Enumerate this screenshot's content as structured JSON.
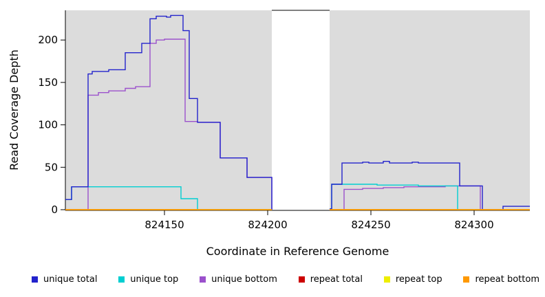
{
  "chart_data": {
    "type": "line",
    "line_style": "step-after",
    "title": "",
    "xlabel": "Coordinate in Reference Genome",
    "ylabel": "Read Coverage Depth",
    "xlim": [
      824102,
      824327
    ],
    "ylim": [
      0,
      235
    ],
    "x_ticks": [
      824150,
      824200,
      824250,
      824300
    ],
    "y_ticks": [
      0,
      50,
      100,
      150,
      200
    ],
    "grid": false,
    "plot_background": "#DCDCDC",
    "gap_region": {
      "start": 824202,
      "end": 824230
    },
    "legend_position": "bottom",
    "draw_order": [
      "unique bottom",
      "unique top",
      "unique total",
      "repeat total",
      "repeat top",
      "repeat bottom"
    ],
    "series": [
      {
        "name": "unique total",
        "color": "#2222CC",
        "segments": [
          [
            [
              824102,
              12
            ],
            [
              824105,
              27
            ],
            [
              824113,
              160
            ],
            [
              824115,
              163
            ],
            [
              824123,
              165
            ],
            [
              824131,
              185
            ],
            [
              824139,
              196
            ],
            [
              824143,
              225
            ],
            [
              824146,
              228
            ],
            [
              824151,
              227
            ],
            [
              824153,
              229
            ],
            [
              824159,
              211
            ],
            [
              824162,
              131
            ],
            [
              824166,
              103
            ],
            [
              824177,
              61
            ],
            [
              824190,
              38
            ],
            [
              824202,
              0
            ]
          ],
          [
            [
              824230,
              1
            ],
            [
              824231,
              30
            ],
            [
              824236,
              55
            ],
            [
              824246,
              56
            ],
            [
              824249,
              55
            ],
            [
              824256,
              57
            ],
            [
              824259,
              55
            ],
            [
              824270,
              56
            ],
            [
              824273,
              55
            ],
            [
              824292,
              55
            ],
            [
              824293,
              28
            ],
            [
              824303,
              28
            ],
            [
              824304,
              0
            ],
            [
              824314,
              4
            ],
            [
              824327,
              4
            ]
          ]
        ]
      },
      {
        "name": "unique top",
        "color": "#00CED1",
        "segments": [
          [
            [
              824102,
              12
            ],
            [
              824105,
              27
            ],
            [
              824157,
              27
            ],
            [
              824158,
              13
            ],
            [
              824165,
              13
            ],
            [
              824166,
              0
            ],
            [
              824202,
              0
            ]
          ],
          [
            [
              824230,
              1
            ],
            [
              824231,
              30
            ],
            [
              824252,
              30
            ],
            [
              824253,
              29
            ],
            [
              824272,
              29
            ],
            [
              824273,
              28
            ],
            [
              824291,
              28
            ],
            [
              824292,
              0
            ],
            [
              824303,
              0
            ]
          ]
        ]
      },
      {
        "name": "unique bottom",
        "color": "#9B51CC",
        "segments": [
          [
            [
              824102,
              0
            ],
            [
              824113,
              135
            ],
            [
              824118,
              138
            ],
            [
              824123,
              140
            ],
            [
              824131,
              143
            ],
            [
              824136,
              145
            ],
            [
              824143,
              196
            ],
            [
              824146,
              200
            ],
            [
              824150,
              201
            ],
            [
              824160,
              104
            ],
            [
              824166,
              103
            ],
            [
              824177,
              61
            ],
            [
              824190,
              38
            ],
            [
              824202,
              0
            ]
          ],
          [
            [
              824236,
              0
            ],
            [
              824237,
              24
            ],
            [
              824246,
              25
            ],
            [
              824256,
              26
            ],
            [
              824266,
              27
            ],
            [
              824286,
              28
            ],
            [
              824302,
              28
            ],
            [
              824303,
              0
            ]
          ]
        ]
      },
      {
        "name": "repeat total",
        "color": "#CC0000",
        "segments": [
          [
            [
              824102,
              0
            ],
            [
              824202,
              0
            ]
          ],
          [
            [
              824230,
              0
            ],
            [
              824327,
              0
            ]
          ]
        ]
      },
      {
        "name": "repeat top",
        "color": "#EEEE00",
        "segments": [
          [
            [
              824102,
              0
            ],
            [
              824202,
              0
            ]
          ],
          [
            [
              824230,
              0
            ],
            [
              824327,
              0
            ]
          ]
        ]
      },
      {
        "name": "repeat bottom",
        "color": "#FF9900",
        "segments": [
          [
            [
              824102,
              0
            ],
            [
              824202,
              0
            ]
          ],
          [
            [
              824230,
              0
            ],
            [
              824327,
              0
            ]
          ]
        ]
      }
    ]
  },
  "legend": {
    "items": [
      {
        "label": "unique total",
        "color": "#2222CC"
      },
      {
        "label": "unique top",
        "color": "#00CED1"
      },
      {
        "label": "unique bottom",
        "color": "#9B51CC"
      },
      {
        "label": "repeat total",
        "color": "#CC0000"
      },
      {
        "label": "repeat top",
        "color": "#EEEE00"
      },
      {
        "label": "repeat bottom",
        "color": "#FF9900"
      }
    ]
  }
}
